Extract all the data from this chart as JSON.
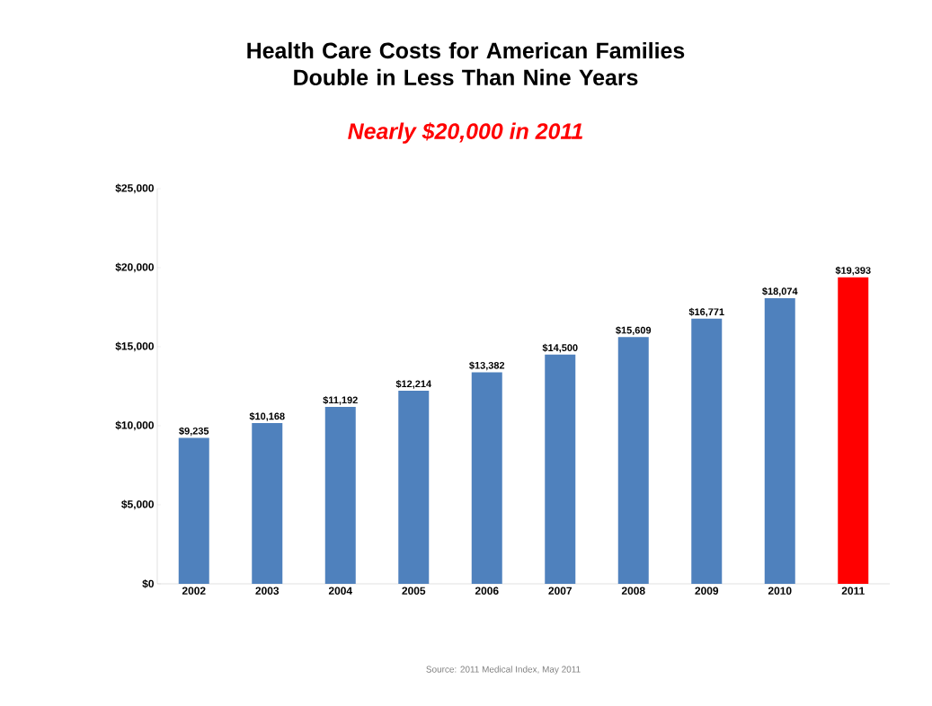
{
  "chart_data": {
    "type": "bar",
    "title": "Health Care Costs for American Families Double in Less Than Nine Years",
    "subtitle": "Nearly $20,000 in 2011",
    "categories": [
      "2002",
      "2003",
      "2004",
      "2005",
      "2006",
      "2007",
      "2008",
      "2009",
      "2010",
      "2011"
    ],
    "values": [
      9235,
      10168,
      11192,
      12214,
      13382,
      14500,
      15609,
      16771,
      18074,
      19393
    ],
    "value_labels": [
      "$9,235",
      "$10,168",
      "$11,192",
      "$12,214",
      "$13,382",
      "$14,500",
      "$15,609",
      "$16,771",
      "$18,074",
      "$19,393"
    ],
    "colors": [
      "#4f81bd",
      "#4f81bd",
      "#4f81bd",
      "#4f81bd",
      "#4f81bd",
      "#4f81bd",
      "#4f81bd",
      "#4f81bd",
      "#4f81bd",
      "#ff0000"
    ],
    "ylim": [
      0,
      25000
    ],
    "yticks": [
      {
        "value": 0,
        "label": "$0"
      },
      {
        "value": 5000,
        "label": "$5,000"
      },
      {
        "value": 10000,
        "label": "$10,000"
      },
      {
        "value": 15000,
        "label": "$15,000"
      },
      {
        "value": 20000,
        "label": "$20,000"
      },
      {
        "value": 25000,
        "label": "$25,000"
      }
    ],
    "grid": false,
    "annotations": [
      "Source: 2011 Medical Index, May 2011"
    ]
  }
}
